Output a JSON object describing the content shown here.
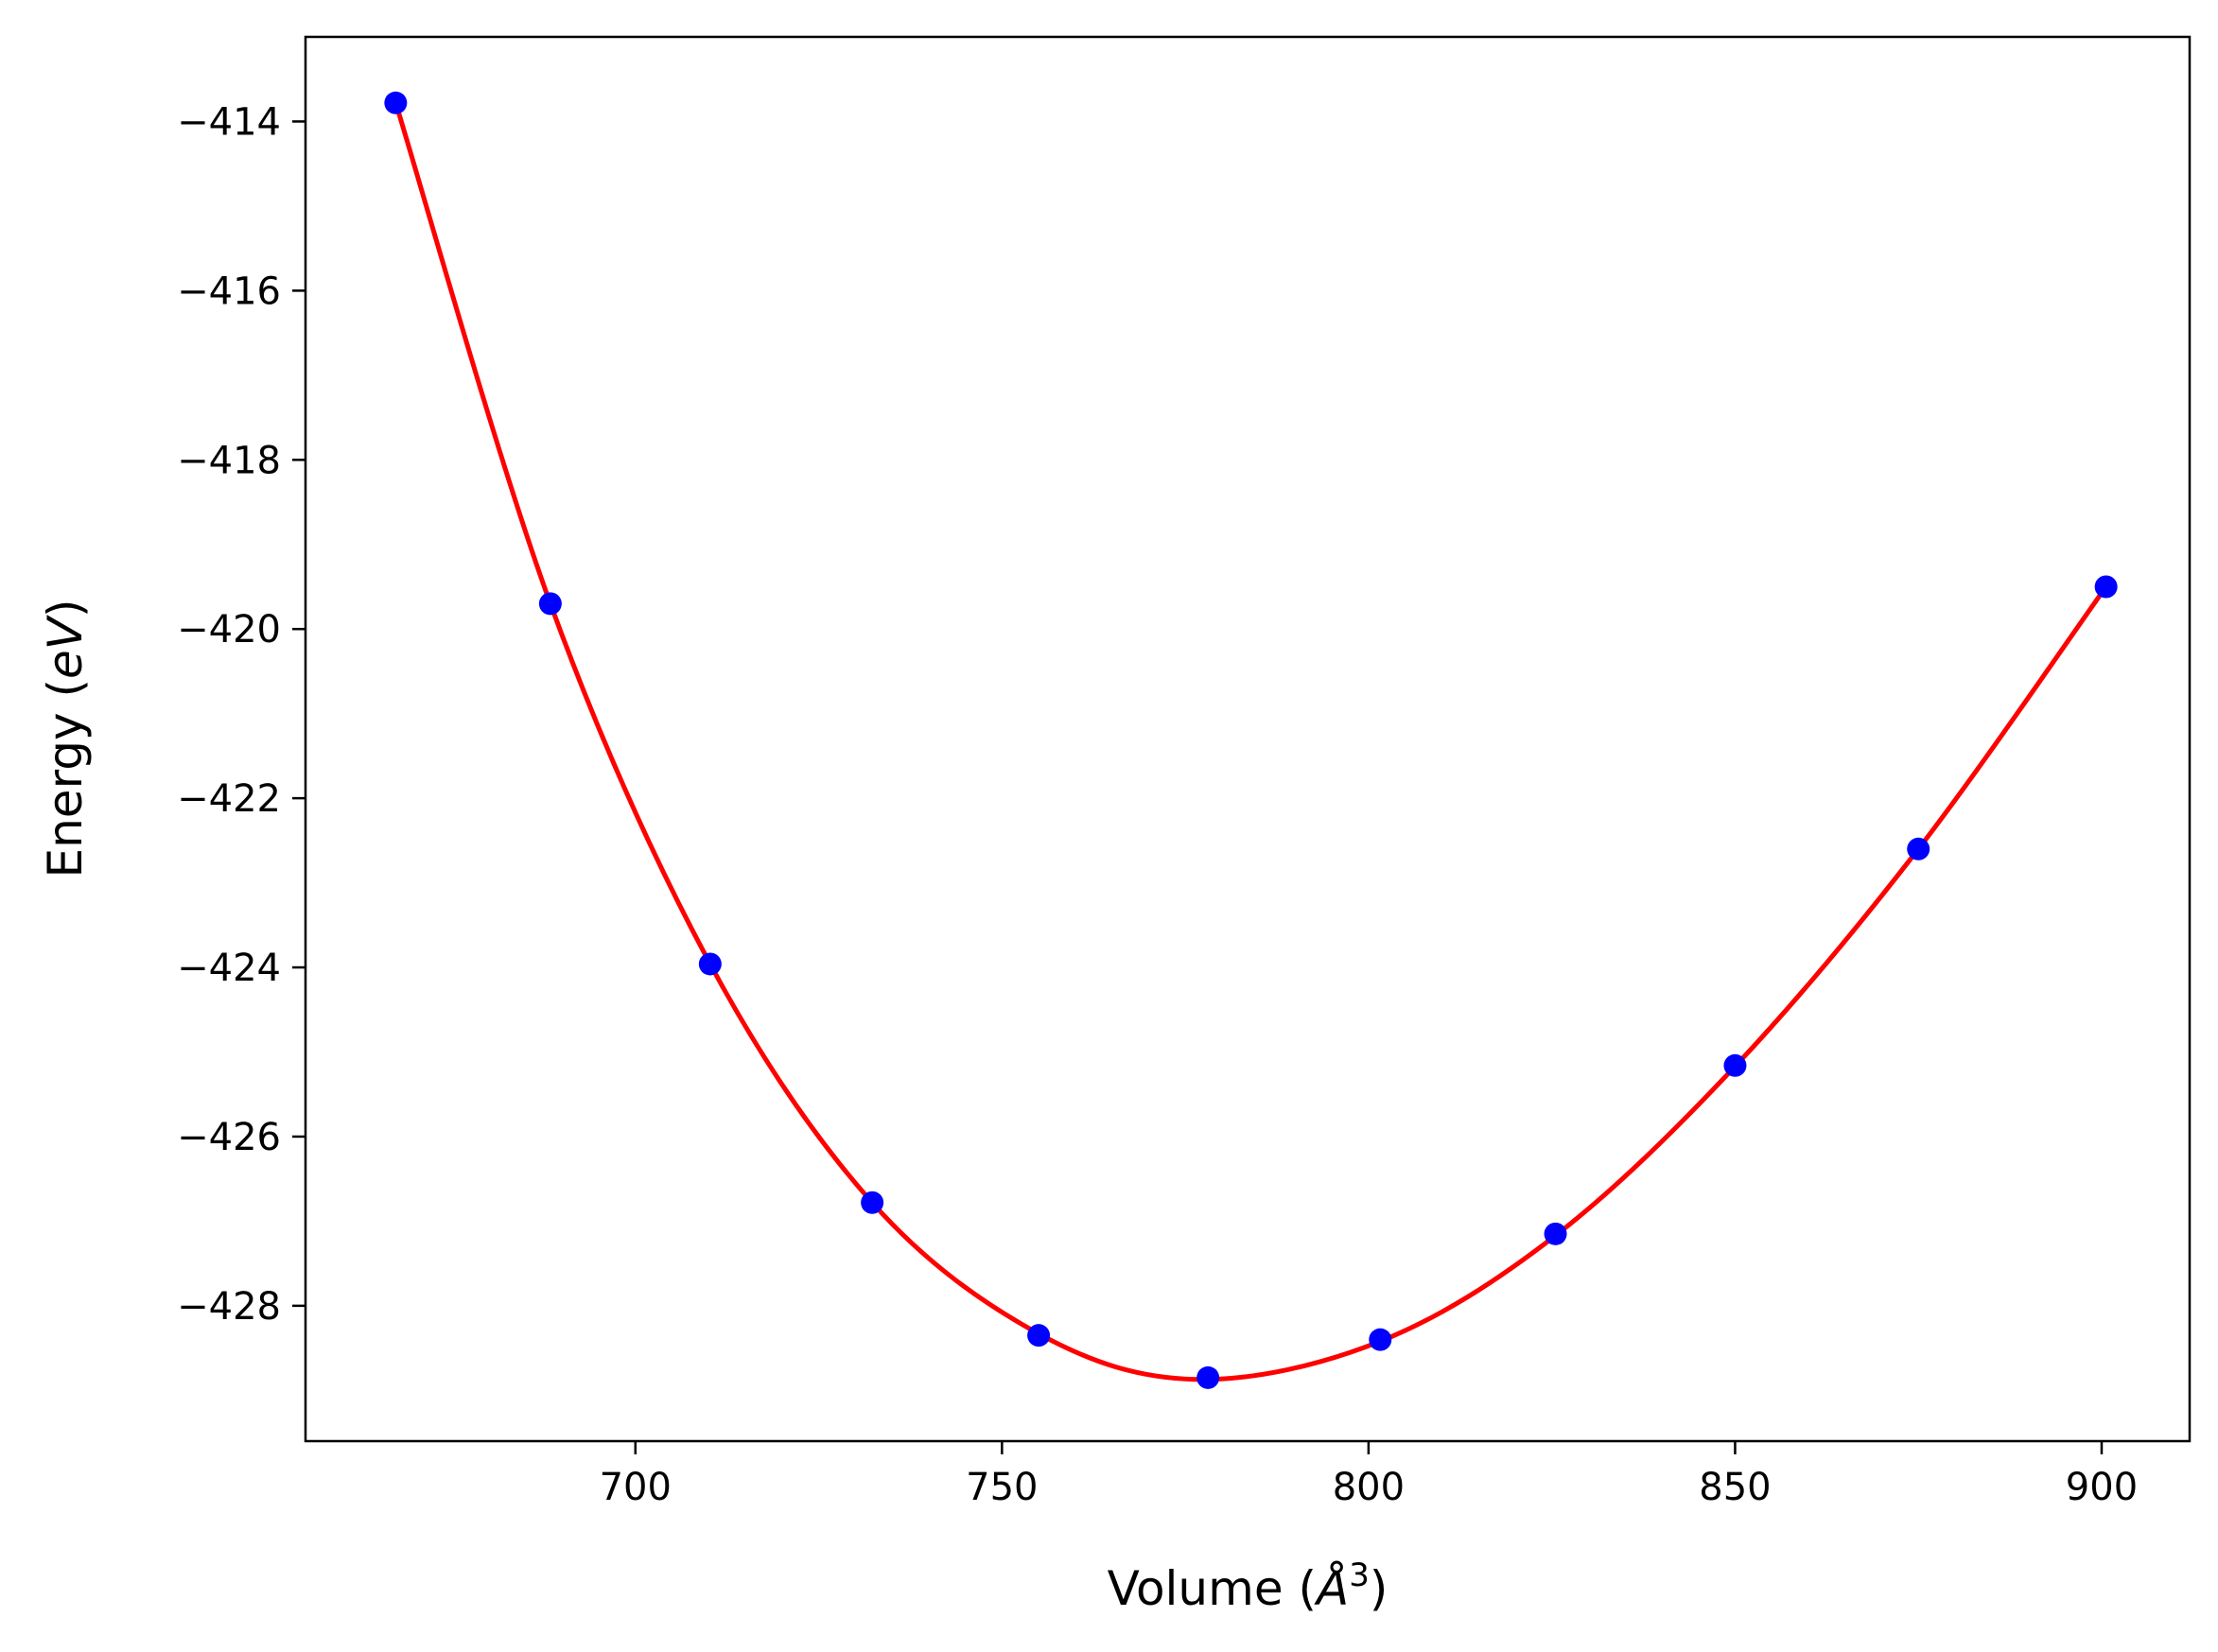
{
  "chart_data": {
    "type": "scatter",
    "title": "",
    "xlabel": "Volume (Å³)",
    "xlabel_parts": {
      "prefix": "Volume (",
      "symbol": "Å",
      "exponent": "3",
      "suffix": ")"
    },
    "ylabel": "Energy (eV)",
    "ylabel_parts": {
      "prefix": "Energy (",
      "symbol": "eV",
      "suffix": ")"
    },
    "xlim": [
      655,
      912
    ],
    "ylim": [
      -429.6,
      -413.0
    ],
    "x_ticks": [
      700,
      750,
      800,
      850,
      900
    ],
    "x_tick_labels": [
      "700",
      "750",
      "800",
      "850",
      "900"
    ],
    "y_ticks": [
      -414,
      -416,
      -418,
      -420,
      -422,
      -424,
      -426,
      -428
    ],
    "y_tick_labels": [
      "−414",
      "−416",
      "−418",
      "−420",
      "−422",
      "−424",
      "−426",
      "−428"
    ],
    "grid": false,
    "legend": "none",
    "series": [
      {
        "kind": "points",
        "color": "#0000ff",
        "x": [
          667.3,
          688.4,
          710.2,
          732.3,
          755.0,
          778.1,
          801.6,
          825.5,
          850.0,
          875.0,
          900.6
        ],
        "y": [
          -413.78,
          -419.7,
          -423.96,
          -426.78,
          -428.35,
          -428.85,
          -428.4,
          -427.15,
          -425.16,
          -422.6,
          -419.5
        ]
      },
      {
        "kind": "fit_curve",
        "color": "#ff0000",
        "x": [
          667.3,
          688.4,
          710.2,
          732.3,
          755.0,
          776.5,
          801.6,
          825.5,
          850.0,
          875.0,
          900.6
        ],
        "y": [
          -413.78,
          -419.7,
          -423.96,
          -426.78,
          -428.33,
          -428.87,
          -428.42,
          -427.17,
          -425.17,
          -422.6,
          -419.5
        ]
      }
    ]
  }
}
